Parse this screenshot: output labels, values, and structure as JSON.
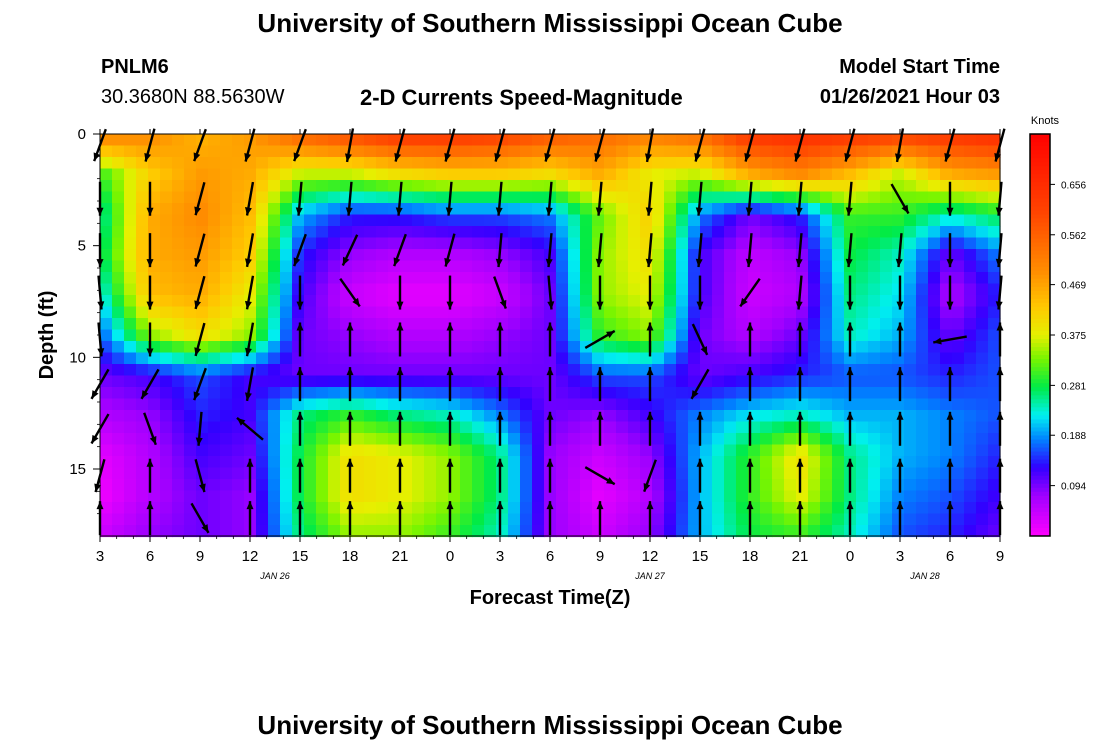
{
  "header": {
    "title_top": "University of Southern Mississippi Ocean Cube",
    "title_bottom": "University of Southern Mississippi Ocean Cube",
    "station_id": "PNLM6",
    "station_coords": "30.3680N 88.5630W",
    "model_start_label": "Model Start Time",
    "model_start_value": "01/26/2021 Hour 03"
  },
  "chart_data": {
    "type": "heatmap",
    "title": "2-D Currents Speed-Magnitude",
    "xlabel": "Forecast Time(Z)",
    "ylabel": "Depth (ft)",
    "x_range_hours": [
      0,
      54
    ],
    "y_range_ft": [
      0,
      18
    ],
    "x_tick_labels": [
      "3",
      "6",
      "9",
      "12",
      "15",
      "18",
      "21",
      "0",
      "3",
      "6",
      "9",
      "12",
      "15",
      "18",
      "21",
      "0",
      "3",
      "6",
      "9"
    ],
    "y_tick_labels": [
      "0",
      "5",
      "10",
      "15"
    ],
    "y_tick_values": [
      0,
      5,
      10,
      15
    ],
    "date_labels": [
      {
        "label": "JAN 26",
        "hour": 10.5
      },
      {
        "label": "JAN 27",
        "hour": 33
      },
      {
        "label": "JAN 28",
        "hour": 49.5
      }
    ],
    "colorbar": {
      "unit": "Knots",
      "tick_labels": [
        "0.656",
        "0.562",
        "0.469",
        "0.375",
        "0.281",
        "0.188",
        "0.094"
      ],
      "tick_values": [
        0.656,
        0.562,
        0.469,
        0.375,
        0.281,
        0.188,
        0.094
      ],
      "range": [
        0,
        0.75
      ]
    },
    "arrow_columns_hours": [
      0,
      3,
      6,
      9,
      12,
      15,
      18,
      21,
      24,
      27,
      30,
      33,
      36,
      39,
      42,
      45,
      48,
      51,
      54
    ],
    "arrow_rows_ft": [
      0.5,
      2.9,
      5.2,
      7.1,
      9.2,
      11.2,
      13.2,
      15.3,
      17.2
    ],
    "arrow_direction_deg": [
      [
        200,
        195,
        200,
        195,
        200,
        190,
        195,
        195,
        195,
        195,
        195,
        190,
        195,
        195,
        195,
        195,
        190,
        195,
        195
      ],
      [
        180,
        180,
        195,
        190,
        185,
        185,
        185,
        185,
        185,
        185,
        185,
        185,
        185,
        185,
        185,
        185,
        150,
        180,
        185
      ],
      [
        180,
        180,
        195,
        190,
        200,
        205,
        200,
        195,
        185,
        185,
        185,
        185,
        185,
        185,
        185,
        185,
        185,
        180,
        185
      ],
      [
        175,
        180,
        195,
        190,
        180,
        145,
        180,
        180,
        160,
        175,
        180,
        180,
        180,
        215,
        185,
        180,
        180,
        180,
        185
      ],
      [
        175,
        180,
        195,
        190,
        0,
        0,
        0,
        0,
        0,
        0,
        60,
        0,
        155,
        0,
        0,
        0,
        0,
        260,
        0
      ],
      [
        210,
        210,
        200,
        190,
        0,
        0,
        0,
        0,
        0,
        0,
        0,
        0,
        210,
        0,
        0,
        0,
        0,
        0,
        0
      ],
      [
        210,
        160,
        185,
        310,
        0,
        0,
        0,
        0,
        0,
        0,
        0,
        0,
        0,
        0,
        0,
        0,
        0,
        0,
        0
      ],
      [
        195,
        0,
        165,
        0,
        0,
        0,
        0,
        0,
        0,
        0,
        120,
        200,
        0,
        0,
        0,
        0,
        0,
        0,
        0
      ],
      [
        0,
        0,
        150,
        0,
        0,
        0,
        0,
        0,
        0,
        0,
        0,
        0,
        0,
        0,
        0,
        0,
        0,
        0,
        0
      ]
    ],
    "speed_grid_knots": [
      [
        0.52,
        0.5,
        0.45,
        0.48,
        0.56,
        0.6,
        0.64,
        0.64,
        0.62,
        0.58,
        0.55,
        0.52,
        0.55,
        0.64,
        0.66,
        0.64,
        0.62,
        0.64,
        0.66
      ],
      [
        0.3,
        0.42,
        0.48,
        0.46,
        0.36,
        0.36,
        0.4,
        0.42,
        0.42,
        0.4,
        0.46,
        0.38,
        0.36,
        0.46,
        0.5,
        0.44,
        0.36,
        0.46,
        0.48
      ],
      [
        0.24,
        0.46,
        0.5,
        0.44,
        0.2,
        0.14,
        0.14,
        0.16,
        0.16,
        0.18,
        0.32,
        0.42,
        0.18,
        0.1,
        0.14,
        0.3,
        0.3,
        0.24,
        0.28
      ],
      [
        0.26,
        0.46,
        0.48,
        0.42,
        0.14,
        0.08,
        0.06,
        0.06,
        0.08,
        0.12,
        0.34,
        0.4,
        0.12,
        0.05,
        0.08,
        0.28,
        0.24,
        0.1,
        0.18
      ],
      [
        0.22,
        0.44,
        0.46,
        0.38,
        0.12,
        0.04,
        0.02,
        0.02,
        0.04,
        0.1,
        0.34,
        0.38,
        0.12,
        0.04,
        0.06,
        0.26,
        0.22,
        0.06,
        0.14
      ],
      [
        0.16,
        0.34,
        0.4,
        0.34,
        0.1,
        0.08,
        0.06,
        0.06,
        0.08,
        0.1,
        0.3,
        0.34,
        0.1,
        0.06,
        0.1,
        0.24,
        0.2,
        0.1,
        0.16
      ],
      [
        0.1,
        0.12,
        0.16,
        0.12,
        0.1,
        0.1,
        0.1,
        0.1,
        0.1,
        0.1,
        0.16,
        0.16,
        0.1,
        0.12,
        0.14,
        0.16,
        0.16,
        0.14,
        0.16
      ],
      [
        0.06,
        0.08,
        0.14,
        0.12,
        0.26,
        0.3,
        0.26,
        0.24,
        0.18,
        0.1,
        0.08,
        0.12,
        0.18,
        0.22,
        0.24,
        0.2,
        0.2,
        0.18,
        0.16
      ],
      [
        0.02,
        0.06,
        0.12,
        0.1,
        0.28,
        0.4,
        0.38,
        0.34,
        0.26,
        0.08,
        0.04,
        0.08,
        0.2,
        0.3,
        0.4,
        0.26,
        0.2,
        0.18,
        0.14
      ],
      [
        0.01,
        0.06,
        0.1,
        0.08,
        0.28,
        0.4,
        0.38,
        0.34,
        0.26,
        0.08,
        0.02,
        0.06,
        0.2,
        0.3,
        0.38,
        0.26,
        0.18,
        0.16,
        0.12
      ],
      [
        0.04,
        0.08,
        0.1,
        0.08,
        0.26,
        0.34,
        0.34,
        0.3,
        0.24,
        0.08,
        0.04,
        0.08,
        0.2,
        0.28,
        0.3,
        0.24,
        0.16,
        0.14,
        0.1
      ]
    ]
  }
}
